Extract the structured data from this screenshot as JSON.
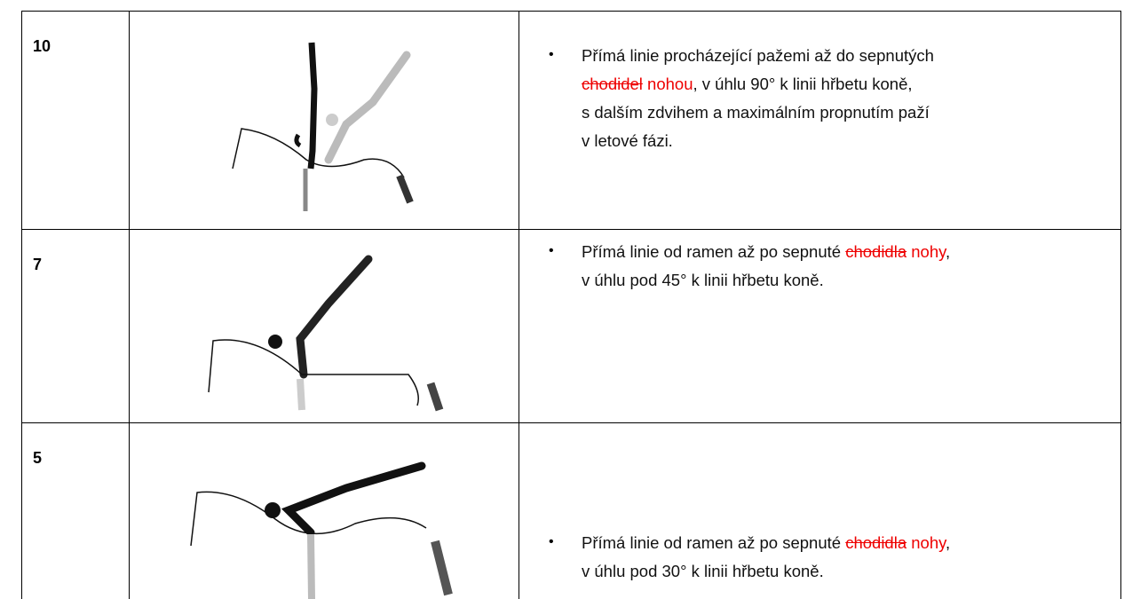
{
  "rows": [
    {
      "score": "10",
      "description": [
        [
          {
            "text": "Přímá linie procházející pažemi až do sepnutých",
            "kind": "plain"
          }
        ],
        [
          {
            "text": "chodidel",
            "kind": "deleted"
          },
          {
            "text": " nohou",
            "kind": "inserted"
          },
          {
            "text": ", v úhlu 90° k linii hřbetu koně,",
            "kind": "plain"
          }
        ],
        [
          {
            "text": "s dalším zdvihem a maximálním propnutím paží",
            "kind": "plain"
          }
        ],
        [
          {
            "text": "v letové fázi.",
            "kind": "plain"
          }
        ]
      ]
    },
    {
      "score": "7",
      "description": [
        [
          {
            "text": "Přímá linie od ramen až po sepnuté ",
            "kind": "plain"
          },
          {
            "text": "chodidla",
            "kind": "deleted"
          },
          {
            "text": " nohy",
            "kind": "inserted"
          },
          {
            "text": ",",
            "kind": "plain"
          }
        ],
        [
          {
            "text": "v úhlu pod 45° k linii hřbetu koně.",
            "kind": "plain"
          }
        ]
      ]
    },
    {
      "score": "5",
      "description": [
        [
          {
            "text": "Přímá linie od ramen až po sepnuté ",
            "kind": "plain"
          },
          {
            "text": "chodidla",
            "kind": "deleted"
          },
          {
            "text": " nohy",
            "kind": "inserted"
          },
          {
            "text": ",",
            "kind": "plain"
          }
        ],
        [
          {
            "text": "v úhlu pod 30° k linii hřbetu koně.",
            "kind": "plain"
          }
        ]
      ]
    }
  ]
}
